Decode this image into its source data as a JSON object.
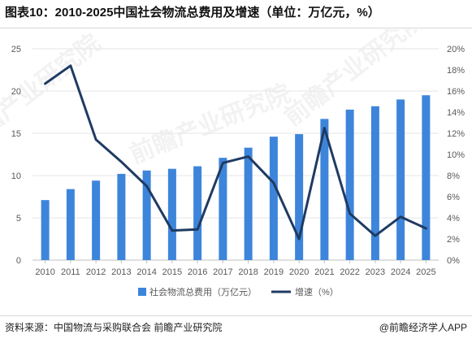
{
  "title": "图表10：2010-2025中国社会物流总费用及增速（单位：万亿元，%）",
  "source": "资料来源：中国物流与采购联合会  前瞻产业研究院",
  "credit": "@前瞻经济学人APP",
  "watermark": "前瞻产业研究院",
  "colors": {
    "bar": "#3d85db",
    "line": "#1f3b63",
    "grid": "#e6e6e6",
    "axis": "#bfbfbf",
    "text": "#595959"
  },
  "chart_data": {
    "type": "bar",
    "categories": [
      "2010",
      "2011",
      "2012",
      "2013",
      "2014",
      "2015",
      "2016",
      "2017",
      "2018",
      "2019",
      "2020",
      "2021",
      "2022",
      "2023",
      "2024",
      "2025"
    ],
    "series": [
      {
        "name": "社会物流总费用（万亿元）",
        "type": "bar",
        "axis": "left",
        "values": [
          7.1,
          8.4,
          9.4,
          10.2,
          10.6,
          10.8,
          11.1,
          12.1,
          13.3,
          14.6,
          14.9,
          16.7,
          17.8,
          18.2,
          19.0,
          19.5
        ]
      },
      {
        "name": "增速（%）",
        "type": "line",
        "axis": "right",
        "values": [
          16.7,
          18.4,
          11.4,
          9.3,
          7.0,
          2.8,
          2.9,
          9.2,
          9.8,
          7.3,
          2.0,
          12.5,
          4.4,
          2.3,
          4.1,
          3.0
        ]
      }
    ],
    "y_left": {
      "lim": [
        0,
        25
      ],
      "ticks": [
        "0",
        "5",
        "10",
        "15",
        "20",
        "25"
      ]
    },
    "y_right": {
      "lim": [
        0,
        20
      ],
      "ticks": [
        "0%",
        "2%",
        "4%",
        "6%",
        "8%",
        "10%",
        "12%",
        "14%",
        "16%",
        "18%",
        "20%"
      ]
    },
    "grid": true,
    "legend_position": "bottom"
  }
}
